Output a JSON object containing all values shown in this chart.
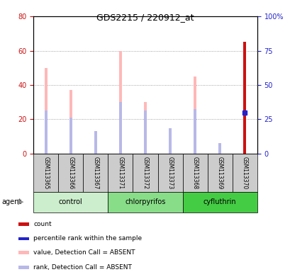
{
  "title": "GDS2215 / 220912_at",
  "samples": [
    "GSM113365",
    "GSM113366",
    "GSM113367",
    "GSM113371",
    "GSM113372",
    "GSM113373",
    "GSM113368",
    "GSM113369",
    "GSM113370"
  ],
  "groups": [
    {
      "name": "control",
      "indices": [
        0,
        1,
        2
      ]
    },
    {
      "name": "chlorpyrifos",
      "indices": [
        3,
        4,
        5
      ]
    },
    {
      "name": "cyfluthrin",
      "indices": [
        6,
        7,
        8
      ]
    }
  ],
  "pink_bar_heights": [
    50,
    37,
    13,
    60,
    30,
    10,
    45,
    3,
    0
  ],
  "blue_rank_heights": [
    25,
    21,
    13,
    30,
    25,
    15,
    26,
    6,
    0
  ],
  "red_bar_height": 65,
  "red_bar_index": 8,
  "blue_square_value": 30,
  "blue_square_index": 8,
  "ylim_left": [
    0,
    80
  ],
  "ylim_right": [
    0,
    100
  ],
  "yticks_left": [
    0,
    20,
    40,
    60,
    80
  ],
  "ytick_labels_right": [
    "0",
    "25",
    "50",
    "75",
    "100%"
  ],
  "pink_color": "#ffb8b8",
  "blue_rank_color": "#b8b8e8",
  "red_color": "#cc1111",
  "blue_square_color": "#2222cc",
  "left_tick_color": "#cc1111",
  "right_tick_color": "#2222cc",
  "group_colors": [
    "#cceecc",
    "#88dd88",
    "#44cc44"
  ],
  "bar_width": 0.12,
  "legend_items": [
    {
      "color": "#cc1111",
      "label": "count"
    },
    {
      "color": "#2222cc",
      "label": "percentile rank within the sample"
    },
    {
      "color": "#ffb8b8",
      "label": "value, Detection Call = ABSENT"
    },
    {
      "color": "#b8b8e8",
      "label": "rank, Detection Call = ABSENT"
    }
  ]
}
